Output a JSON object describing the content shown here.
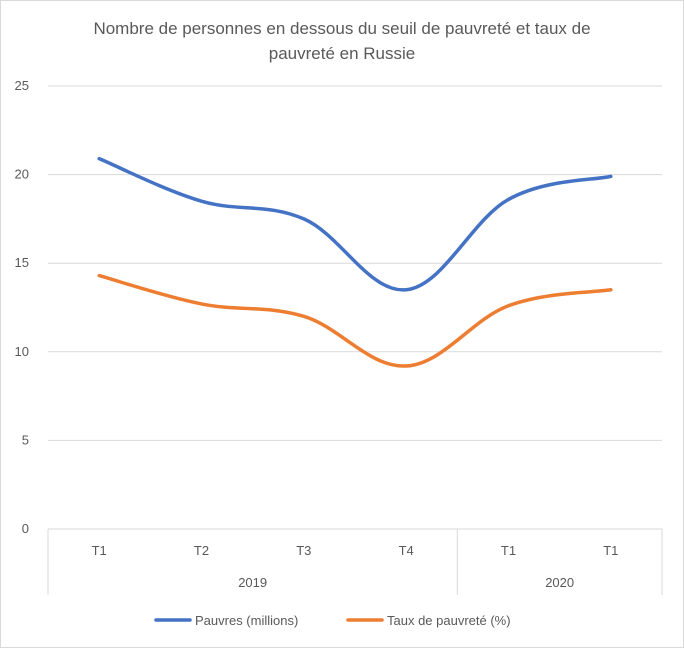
{
  "chart_data": {
    "type": "line",
    "title_line1": "Nombre de personnes en dessous du seuil de pauvreté et taux de",
    "title_line2": "pauvreté en Russie",
    "categories": [
      "T1",
      "T2",
      "T3",
      "T4",
      "T1",
      "T1"
    ],
    "groups": [
      {
        "label": "2019",
        "span": 4
      },
      {
        "label": "2020",
        "span": 2
      }
    ],
    "ylim": [
      0,
      25
    ],
    "yticks": [
      "0",
      "5",
      "10",
      "15",
      "20",
      "25"
    ],
    "grid": true,
    "legend_position": "bottom",
    "series": [
      {
        "name": "Pauvres (millions)",
        "color": "#4472C4",
        "values": [
          20.9,
          18.5,
          17.5,
          13.5,
          18.6,
          19.9
        ]
      },
      {
        "name": "Taux de pauvreté (%)",
        "color": "#ED7D31",
        "values": [
          14.3,
          12.7,
          12.0,
          9.2,
          12.6,
          13.5
        ]
      }
    ]
  }
}
